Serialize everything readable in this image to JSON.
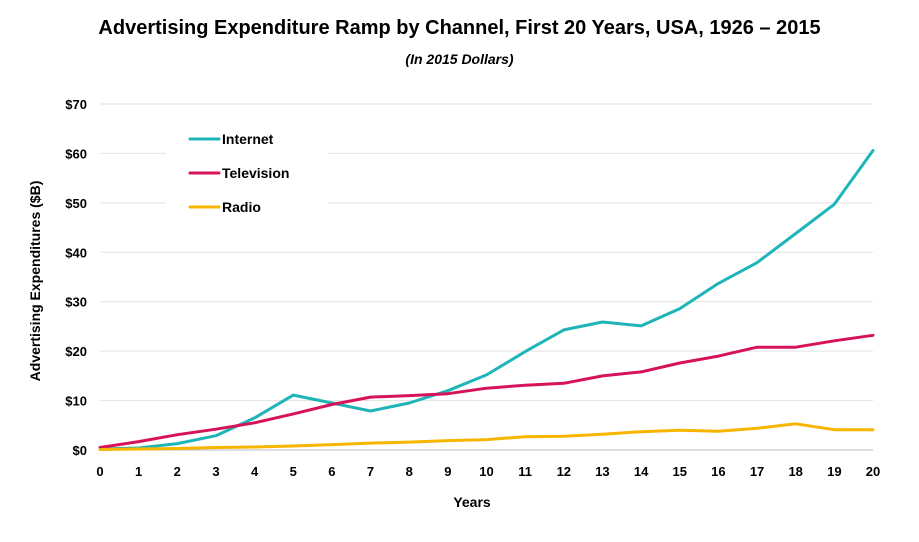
{
  "chart_data": {
    "type": "line",
    "title": "Advertising Expenditure Ramp by Channel, First 20 Years, USA, 1926 – 2015",
    "subtitle": "(In 2015 Dollars)",
    "xlabel": "Years",
    "ylabel": "Advertising Expenditures ($B)",
    "x": [
      0,
      1,
      2,
      3,
      4,
      5,
      6,
      7,
      8,
      9,
      10,
      11,
      12,
      13,
      14,
      15,
      16,
      17,
      18,
      19,
      20
    ],
    "x_tick_labels": [
      "0",
      "1",
      "2",
      "3",
      "4",
      "5",
      "6",
      "7",
      "8",
      "9",
      "10",
      "11",
      "12",
      "13",
      "14",
      "15",
      "16",
      "17",
      "18",
      "19",
      "20"
    ],
    "ylim": [
      0,
      70
    ],
    "y_ticks": [
      0,
      10,
      20,
      30,
      40,
      50,
      60,
      70
    ],
    "y_tick_labels": [
      "$0",
      "$10",
      "$20",
      "$30",
      "$40",
      "$50",
      "$60",
      "$70"
    ],
    "grid": true,
    "legend_position": "top-left",
    "series": [
      {
        "name": "Internet",
        "color": "#1fb5b8",
        "values": [
          0.2,
          0.4,
          1.3,
          2.9,
          6.5,
          11.1,
          9.5,
          7.9,
          9.5,
          12.0,
          15.2,
          19.9,
          24.3,
          25.9,
          25.1,
          28.6,
          33.7,
          37.9,
          43.8,
          49.7,
          60.6
        ]
      },
      {
        "name": "Television",
        "color": "#d6125a",
        "values": [
          0.5,
          1.7,
          3.1,
          4.2,
          5.5,
          7.3,
          9.2,
          10.7,
          11.0,
          11.4,
          12.5,
          13.1,
          13.5,
          15.0,
          15.8,
          17.6,
          19.0,
          20.8,
          20.8,
          22.1,
          23.2
        ]
      },
      {
        "name": "Radio",
        "color": "#f7b500",
        "values": [
          0.1,
          0.2,
          0.3,
          0.5,
          0.6,
          0.8,
          1.1,
          1.4,
          1.6,
          1.9,
          2.1,
          2.7,
          2.8,
          3.2,
          3.7,
          4.0,
          3.8,
          4.4,
          5.3,
          4.1,
          4.1
        ]
      }
    ]
  }
}
